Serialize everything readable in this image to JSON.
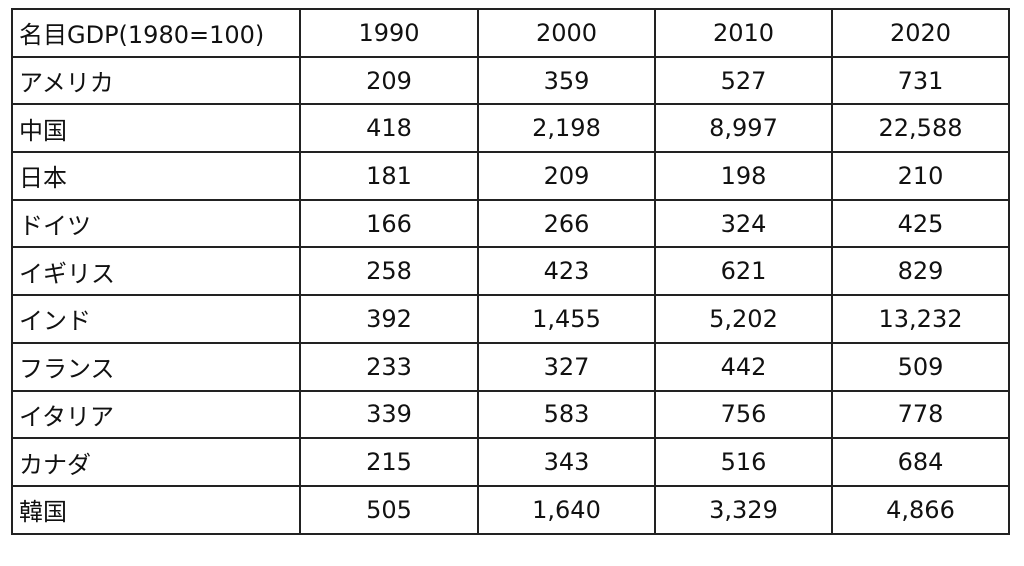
{
  "table": {
    "header": [
      "名目GDP(1980=100)",
      "1990",
      "2000",
      "2010",
      "2020"
    ],
    "rows": [
      [
        "アメリカ",
        "209",
        "359",
        "527",
        "731"
      ],
      [
        "中国",
        "418",
        "2,198",
        "8,997",
        "22,588"
      ],
      [
        "日本",
        "181",
        "209",
        "198",
        "210"
      ],
      [
        "ドイツ",
        "166",
        "266",
        "324",
        "425"
      ],
      [
        "イギリス",
        "258",
        "423",
        "621",
        "829"
      ],
      [
        "インド",
        "392",
        "1,455",
        "5,202",
        "13,232"
      ],
      [
        "フランス",
        "233",
        "327",
        "442",
        "509"
      ],
      [
        "イタリア",
        "339",
        "583",
        "756",
        "778"
      ],
      [
        "カナダ",
        "215",
        "343",
        "516",
        "684"
      ],
      [
        "韓国",
        "505",
        "1,640",
        "3,329",
        "4,866"
      ]
    ]
  }
}
